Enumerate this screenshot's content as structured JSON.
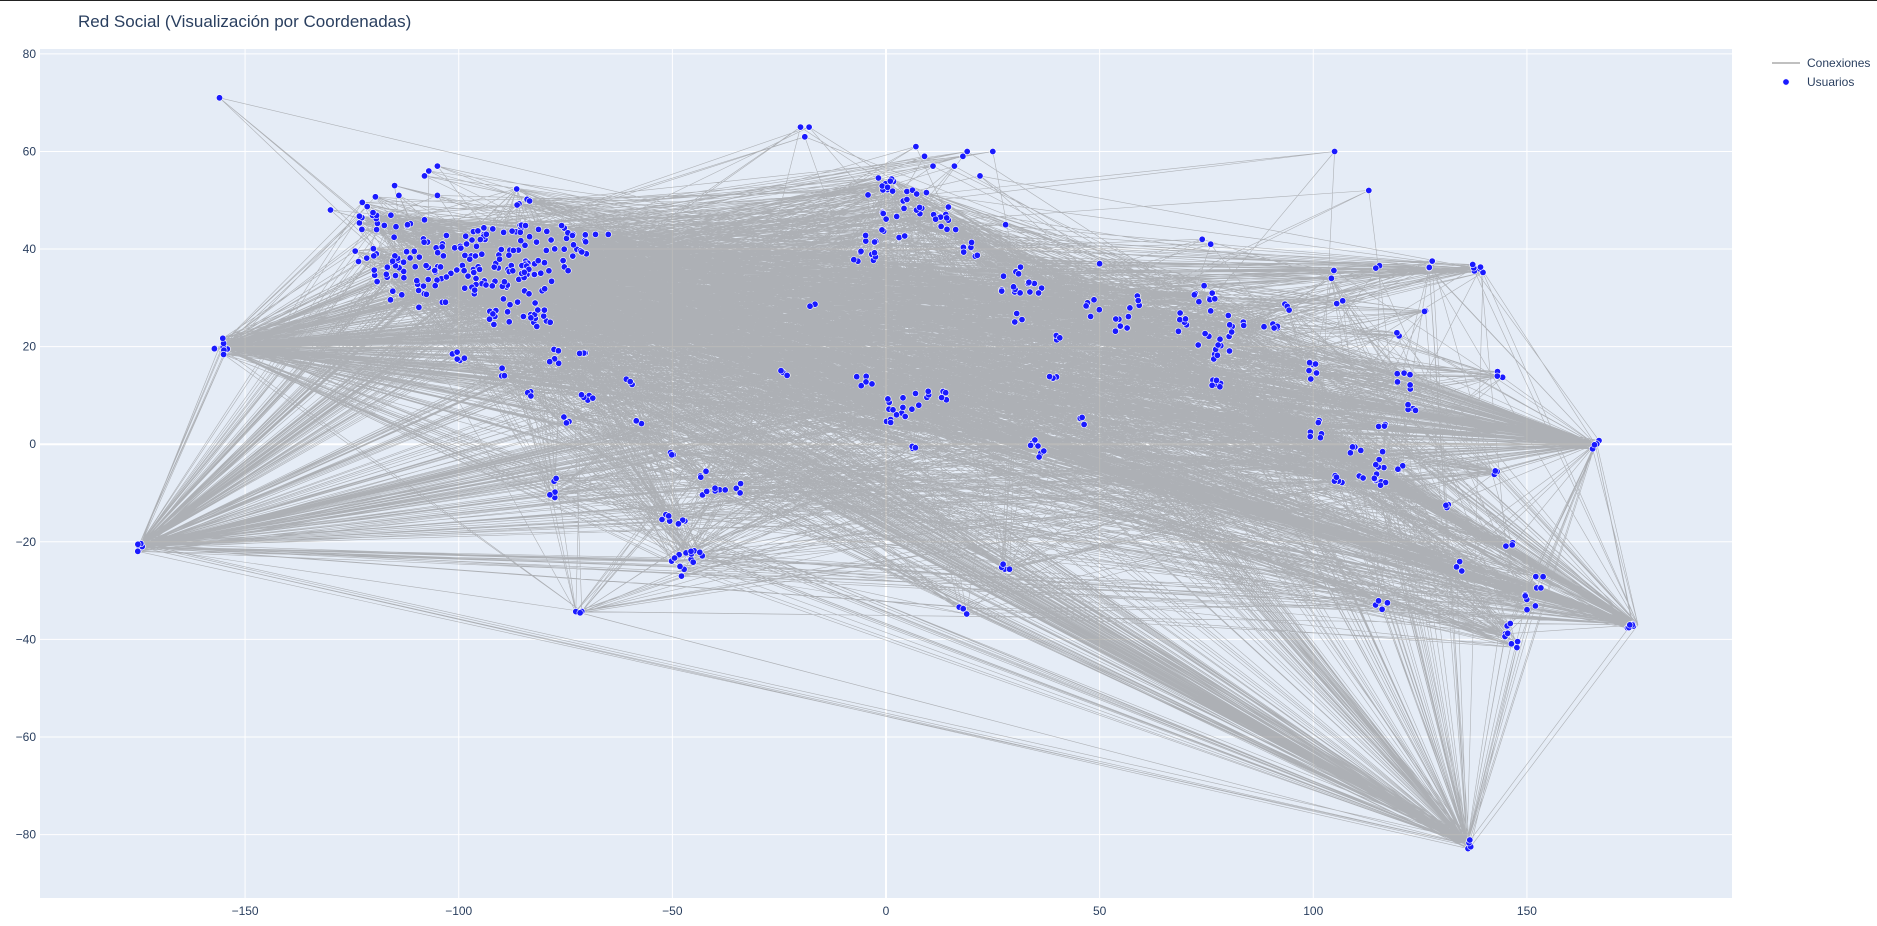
{
  "chart_data": {
    "type": "scatter",
    "title": "Red Social (Visualización por Coordenadas)",
    "xlabel": "",
    "ylabel": "",
    "xlim": [
      -198,
      198
    ],
    "ylim": [
      -93,
      81
    ],
    "xticks": [
      -150,
      -100,
      -50,
      0,
      50,
      100,
      150
    ],
    "yticks": [
      -80,
      -60,
      -40,
      -20,
      0,
      20,
      40,
      60,
      80
    ],
    "grid": true,
    "legend_position": "top-right",
    "colors": {
      "plot_bg": "#e5ecf6",
      "grid": "#ffffff",
      "edges": "#808080",
      "nodes": "#1a1aff",
      "node_outline": "#ffffff",
      "text": "#2a3f5f"
    },
    "series": [
      {
        "name": "Conexiones",
        "type": "lines",
        "hubs": [
          {
            "x": -175,
            "y": -21
          },
          {
            "x": 136,
            "y": -82
          },
          {
            "x": 176,
            "y": -37
          },
          {
            "x": 166,
            "y": 0
          },
          {
            "x": -156,
            "y": 20
          }
        ]
      },
      {
        "name": "Usuarios",
        "type": "markers",
        "clusters": [
          {
            "x": -118,
            "y": 40,
            "w": 8,
            "h": 7,
            "n": 30
          },
          {
            "x": -112,
            "y": 34,
            "w": 8,
            "h": 6,
            "n": 20
          },
          {
            "x": -100,
            "y": 36,
            "w": 10,
            "h": 7,
            "n": 45
          },
          {
            "x": -90,
            "y": 38,
            "w": 10,
            "h": 7,
            "n": 50
          },
          {
            "x": -78,
            "y": 40,
            "w": 8,
            "h": 5,
            "n": 35
          },
          {
            "x": -85,
            "y": 30,
            "w": 8,
            "h": 6,
            "n": 25
          },
          {
            "x": -82,
            "y": 26,
            "w": 4,
            "h": 2,
            "n": 8
          },
          {
            "x": -122,
            "y": 47,
            "w": 3,
            "h": 4,
            "n": 10
          },
          {
            "x": -85,
            "y": 51,
            "w": 2,
            "h": 2,
            "n": 6
          },
          {
            "x": -156,
            "y": 20,
            "w": 2,
            "h": 2,
            "n": 8
          },
          {
            "x": -175,
            "y": -21,
            "w": 1,
            "h": 1,
            "n": 5
          },
          {
            "x": -100,
            "y": 19,
            "w": 1.5,
            "h": 2,
            "n": 5
          },
          {
            "x": -90,
            "y": 15,
            "w": 1,
            "h": 1,
            "n": 3
          },
          {
            "x": -77,
            "y": 18,
            "w": 2,
            "h": 1.5,
            "n": 5
          },
          {
            "x": -83,
            "y": 10,
            "w": 1,
            "h": 1,
            "n": 3
          },
          {
            "x": -75,
            "y": 5,
            "w": 1,
            "h": 1,
            "n": 3
          },
          {
            "x": -70,
            "y": 10,
            "w": 2,
            "h": 1,
            "n": 5
          },
          {
            "x": -71,
            "y": 18,
            "w": 1,
            "h": 1,
            "n": 3
          },
          {
            "x": -60,
            "y": 13,
            "w": 1,
            "h": 1,
            "n": 3
          },
          {
            "x": -58,
            "y": 4,
            "w": 1,
            "h": 1,
            "n": 3
          },
          {
            "x": -78,
            "y": -9,
            "w": 1,
            "h": 2,
            "n": 5
          },
          {
            "x": -72,
            "y": -34,
            "w": 1,
            "h": 1,
            "n": 3
          },
          {
            "x": -50,
            "y": -2,
            "w": 1,
            "h": 1,
            "n": 3
          },
          {
            "x": -43,
            "y": -6,
            "w": 1,
            "h": 1,
            "n": 3
          },
          {
            "x": -40,
            "y": -10,
            "w": 3,
            "h": 1,
            "n": 6
          },
          {
            "x": -35,
            "y": -9,
            "w": 1,
            "h": 1,
            "n": 3
          },
          {
            "x": -52,
            "y": -15,
            "w": 1.5,
            "h": 1,
            "n": 4
          },
          {
            "x": -48,
            "y": -16,
            "w": 1,
            "h": 1,
            "n": 3
          },
          {
            "x": -48,
            "y": -25,
            "w": 3,
            "h": 3,
            "n": 10
          },
          {
            "x": -44,
            "y": -22,
            "w": 2,
            "h": 1,
            "n": 4
          },
          {
            "x": -24,
            "y": 15,
            "w": 1,
            "h": 1,
            "n": 3
          },
          {
            "x": -17,
            "y": 28,
            "w": 1,
            "h": 1,
            "n": 2
          },
          {
            "x": -5,
            "y": 40,
            "w": 3,
            "h": 3,
            "n": 12
          },
          {
            "x": -2,
            "y": 53,
            "w": 4,
            "h": 2,
            "n": 12
          },
          {
            "x": 8,
            "y": 50,
            "w": 4,
            "h": 3,
            "n": 12
          },
          {
            "x": 14,
            "y": 46,
            "w": 3,
            "h": 3,
            "n": 10
          },
          {
            "x": 2,
            "y": 45,
            "w": 3,
            "h": 3,
            "n": 8
          },
          {
            "x": 20,
            "y": 40,
            "w": 2,
            "h": 2,
            "n": 6
          },
          {
            "x": 30,
            "y": 34,
            "w": 3,
            "h": 3,
            "n": 10
          },
          {
            "x": 35,
            "y": 32,
            "w": 2,
            "h": 2,
            "n": 6
          },
          {
            "x": 31,
            "y": 26,
            "w": 1,
            "h": 1,
            "n": 3
          },
          {
            "x": 40,
            "y": 22,
            "w": 1,
            "h": 1,
            "n": 3
          },
          {
            "x": 39,
            "y": 14,
            "w": 1,
            "h": 1,
            "n": 3
          },
          {
            "x": 48,
            "y": 28,
            "w": 2,
            "h": 2,
            "n": 6
          },
          {
            "x": 55,
            "y": 25,
            "w": 2,
            "h": 2,
            "n": 6
          },
          {
            "x": 58,
            "y": 29,
            "w": 1.5,
            "h": 1.5,
            "n": 4
          },
          {
            "x": 46,
            "y": 5,
            "w": 1,
            "h": 1,
            "n": 3
          },
          {
            "x": -5,
            "y": 13,
            "w": 2,
            "h": 1.5,
            "n": 5
          },
          {
            "x": 3,
            "y": 7,
            "w": 3,
            "h": 3,
            "n": 12
          },
          {
            "x": 8,
            "y": 9,
            "w": 2,
            "h": 2,
            "n": 6
          },
          {
            "x": 13,
            "y": 10,
            "w": 2,
            "h": 1,
            "n": 4
          },
          {
            "x": 6,
            "y": 0,
            "w": 1,
            "h": 1,
            "n": 3
          },
          {
            "x": 34,
            "y": 0,
            "w": 2,
            "h": 1,
            "n": 4
          },
          {
            "x": 36,
            "y": -2,
            "w": 1,
            "h": 1,
            "n": 3
          },
          {
            "x": 28,
            "y": -26,
            "w": 1,
            "h": 1.5,
            "n": 4
          },
          {
            "x": 18,
            "y": -34,
            "w": 1,
            "h": 1,
            "n": 3
          },
          {
            "x": 70,
            "y": 25,
            "w": 2,
            "h": 2,
            "n": 6
          },
          {
            "x": 75,
            "y": 30,
            "w": 3,
            "h": 3,
            "n": 10
          },
          {
            "x": 77,
            "y": 20,
            "w": 4,
            "h": 3,
            "n": 12
          },
          {
            "x": 77,
            "y": 12,
            "w": 2,
            "h": 2,
            "n": 6
          },
          {
            "x": 82,
            "y": 25,
            "w": 2,
            "h": 2,
            "n": 6
          },
          {
            "x": 90,
            "y": 24,
            "w": 2,
            "h": 1,
            "n": 5
          },
          {
            "x": 94,
            "y": 28,
            "w": 1,
            "h": 1,
            "n": 3
          },
          {
            "x": 101,
            "y": 15,
            "w": 2,
            "h": 2,
            "n": 6
          },
          {
            "x": 101,
            "y": 3,
            "w": 2,
            "h": 2,
            "n": 6
          },
          {
            "x": 106,
            "y": -7,
            "w": 2,
            "h": 1,
            "n": 5
          },
          {
            "x": 112,
            "y": -7,
            "w": 3,
            "h": 1,
            "n": 6
          },
          {
            "x": 110,
            "y": -1,
            "w": 2,
            "h": 1,
            "n": 4
          },
          {
            "x": 115,
            "y": -3,
            "w": 2,
            "h": 2,
            "n": 5
          },
          {
            "x": 116,
            "y": -8,
            "w": 1,
            "h": 1,
            "n": 3
          },
          {
            "x": 120,
            "y": -5,
            "w": 1,
            "h": 1,
            "n": 3
          },
          {
            "x": 121,
            "y": 13,
            "w": 2,
            "h": 2,
            "n": 6
          },
          {
            "x": 123,
            "y": 8,
            "w": 1,
            "h": 2,
            "n": 4
          },
          {
            "x": 116,
            "y": 4,
            "w": 1,
            "h": 1,
            "n": 3
          },
          {
            "x": 116,
            "y": -33,
            "w": 1.5,
            "h": 1,
            "n": 4
          },
          {
            "x": 128,
            "y": 37,
            "w": 1,
            "h": 1,
            "n": 3
          },
          {
            "x": 127,
            "y": 27,
            "w": 1,
            "h": 1,
            "n": 2
          },
          {
            "x": 104,
            "y": 35,
            "w": 1,
            "h": 1,
            "n": 2
          },
          {
            "x": 106,
            "y": 29,
            "w": 1,
            "h": 1,
            "n": 2
          },
          {
            "x": 115,
            "y": 37,
            "w": 1,
            "h": 1,
            "n": 2
          },
          {
            "x": 120,
            "y": 22,
            "w": 1,
            "h": 1,
            "n": 2
          },
          {
            "x": 139,
            "y": 36,
            "w": 2,
            "h": 1,
            "n": 6
          },
          {
            "x": 131,
            "y": -12,
            "w": 1,
            "h": 1,
            "n": 3
          },
          {
            "x": 134,
            "y": -25,
            "w": 1,
            "h": 1,
            "n": 3
          },
          {
            "x": 136,
            "y": -82,
            "w": 1,
            "h": 1,
            "n": 4
          },
          {
            "x": 143,
            "y": -6,
            "w": 1,
            "h": 1,
            "n": 3
          },
          {
            "x": 145,
            "y": -38,
            "w": 1.5,
            "h": 1.5,
            "n": 5
          },
          {
            "x": 147,
            "y": -41,
            "w": 1,
            "h": 1,
            "n": 3
          },
          {
            "x": 146,
            "y": -20,
            "w": 1,
            "h": 1,
            "n": 3
          },
          {
            "x": 151,
            "y": -32,
            "w": 1.5,
            "h": 2,
            "n": 5
          },
          {
            "x": 153,
            "y": -28,
            "w": 1,
            "h": 1.5,
            "n": 4
          },
          {
            "x": 144,
            "y": 14,
            "w": 1,
            "h": 1,
            "n": 3
          },
          {
            "x": 166,
            "y": 0,
            "w": 1,
            "h": 1,
            "n": 4
          },
          {
            "x": 175,
            "y": -37,
            "w": 1.5,
            "h": 1,
            "n": 6
          }
        ],
        "singles": [
          {
            "x": -156,
            "y": 71
          },
          {
            "x": -105,
            "y": 57
          },
          {
            "x": -107,
            "y": 56
          },
          {
            "x": -108,
            "y": 55
          },
          {
            "x": -105,
            "y": 51
          },
          {
            "x": -114,
            "y": 51
          },
          {
            "x": -115,
            "y": 53
          },
          {
            "x": -130,
            "y": 48
          },
          {
            "x": -112,
            "y": 45
          },
          {
            "x": -108,
            "y": 46
          },
          {
            "x": -20,
            "y": 65
          },
          {
            "x": -18,
            "y": 65
          },
          {
            "x": -19,
            "y": 63
          },
          {
            "x": 7,
            "y": 61
          },
          {
            "x": 9,
            "y": 59
          },
          {
            "x": 18,
            "y": 59
          },
          {
            "x": 19,
            "y": 60
          },
          {
            "x": 16,
            "y": 57
          },
          {
            "x": 22,
            "y": 55
          },
          {
            "x": 11,
            "y": 57
          },
          {
            "x": 25,
            "y": 60
          },
          {
            "x": 105,
            "y": 60
          },
          {
            "x": 113,
            "y": 52
          },
          {
            "x": 74,
            "y": 42
          },
          {
            "x": 76,
            "y": 41
          },
          {
            "x": 50,
            "y": 37
          },
          {
            "x": 28,
            "y": 45
          },
          {
            "x": -68,
            "y": 43
          },
          {
            "x": -65,
            "y": 43
          }
        ]
      }
    ]
  }
}
